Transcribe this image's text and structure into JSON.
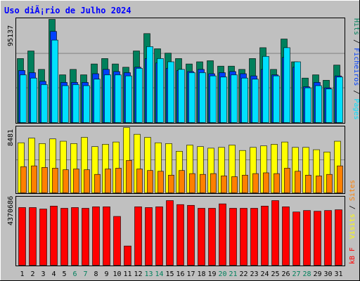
{
  "title": "Uso diÃ¡rio de Julho 2024",
  "colors": {
    "background": "#c0c0c0",
    "title": "#0000ff",
    "hits": "#00805c",
    "files": "#0040ff",
    "pages": "#00e0ff",
    "visits": "#ffff00",
    "sites": "#ff8000",
    "kbytes": "#ff0000",
    "weekend_label": "#00805c",
    "weekday_label": "#000000"
  },
  "chart_data": [
    {
      "type": "bar",
      "name": "hits-files-pages",
      "max_label": "95137",
      "legend": [
        "Hits",
        "Ficheiros",
        "Pages"
      ],
      "legend_separator": " / ",
      "categories": [
        "1",
        "2",
        "3",
        "4",
        "5",
        "6",
        "7",
        "8",
        "9",
        "10",
        "11",
        "12",
        "13",
        "14",
        "15",
        "16",
        "17",
        "18",
        "19",
        "20",
        "21",
        "22",
        "23",
        "24",
        "25",
        "26",
        "27",
        "28",
        "29",
        "30",
        "31"
      ],
      "weekend_days": [
        "6",
        "7",
        "13",
        "14",
        "20",
        "21",
        "27",
        "28"
      ],
      "ylim": [
        0,
        95137
      ],
      "series": [
        {
          "name": "Hits",
          "values": [
            59000,
            66000,
            49000,
            95137,
            44000,
            49000,
            44000,
            54000,
            59000,
            54000,
            51000,
            66000,
            82000,
            68000,
            64000,
            59000,
            54000,
            56000,
            57000,
            52000,
            52000,
            49000,
            59000,
            69000,
            49000,
            77000,
            56000,
            41000,
            44000,
            39000,
            53000
          ]
        },
        {
          "name": "Ficheiros",
          "values": [
            48000,
            46000,
            38000,
            84000,
            37000,
            37000,
            37000,
            45000,
            49000,
            47000,
            46000,
            51000,
            59000,
            55000,
            50000,
            48000,
            47000,
            49000,
            45000,
            46000,
            47000,
            45000,
            43000,
            49000,
            44000,
            60000,
            51000,
            33000,
            37000,
            32000,
            43000
          ]
        },
        {
          "name": "Pages",
          "values": [
            44000,
            41000,
            35000,
            76000,
            34000,
            35000,
            34000,
            40000,
            44000,
            44000,
            43000,
            50000,
            70000,
            59000,
            56000,
            49000,
            46000,
            46000,
            43000,
            42000,
            44000,
            41000,
            40000,
            61000,
            43000,
            69000,
            56000,
            32000,
            34000,
            31000,
            42000
          ]
        }
      ]
    },
    {
      "type": "bar",
      "name": "visits-sites",
      "max_label": "8481",
      "legend": [
        "Visits",
        "Sites"
      ],
      "legend_separator": " / ",
      "categories": [
        "1",
        "2",
        "3",
        "4",
        "5",
        "6",
        "7",
        "8",
        "9",
        "10",
        "11",
        "12",
        "13",
        "14",
        "15",
        "16",
        "17",
        "18",
        "19",
        "20",
        "21",
        "22",
        "23",
        "24",
        "25",
        "26",
        "27",
        "28",
        "29",
        "30",
        "31"
      ],
      "ylim": [
        0,
        8481
      ],
      "series": [
        {
          "name": "Visits",
          "values": [
            6500,
            7100,
            6400,
            7000,
            6700,
            6400,
            7200,
            6000,
            6300,
            6600,
            8481,
            7600,
            7200,
            6500,
            6400,
            5400,
            6200,
            6000,
            5800,
            5900,
            6200,
            5500,
            5900,
            6100,
            6300,
            6600,
            5900,
            5900,
            5600,
            5300,
            6700
          ]
        },
        {
          "name": "Sites",
          "values": [
            3400,
            3500,
            3300,
            3200,
            3000,
            3100,
            3000,
            2400,
            3100,
            3200,
            4200,
            3100,
            2900,
            2800,
            2300,
            2900,
            2500,
            2400,
            2500,
            2200,
            2100,
            2300,
            2500,
            2600,
            2500,
            3200,
            2800,
            2300,
            2200,
            2400,
            3500
          ]
        }
      ]
    },
    {
      "type": "bar",
      "name": "kbytes",
      "max_label": "4370686",
      "legend": [
        "kB F"
      ],
      "categories": [
        "1",
        "2",
        "3",
        "4",
        "5",
        "6",
        "7",
        "8",
        "9",
        "10",
        "11",
        "12",
        "13",
        "14",
        "15",
        "16",
        "17",
        "18",
        "19",
        "20",
        "21",
        "22",
        "23",
        "24",
        "25",
        "26",
        "27",
        "28",
        "29",
        "30",
        "31"
      ],
      "ylim": [
        0,
        4370686
      ],
      "series": [
        {
          "name": "kB F",
          "values": [
            3900000,
            3900000,
            3800000,
            4000000,
            3850000,
            3900000,
            3850000,
            3950000,
            3950000,
            3300000,
            1300000,
            3950000,
            3900000,
            3950000,
            4370686,
            4100000,
            4050000,
            3850000,
            3850000,
            4150000,
            3850000,
            3850000,
            3850000,
            4000000,
            4370686,
            3950000,
            3600000,
            3700000,
            3650000,
            3700000,
            3750000
          ]
        }
      ]
    }
  ]
}
